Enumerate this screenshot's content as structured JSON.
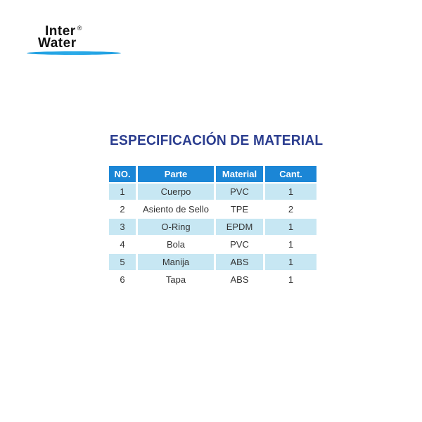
{
  "logo": {
    "line1": "Inter",
    "registered": "®",
    "line2": "Water"
  },
  "title": "ESPECIFICACIÓN DE MATERIAL",
  "colors": {
    "header": "#1b86d6",
    "row_alt": "#c7e7f3",
    "title": "#2b3d8f"
  },
  "table": {
    "headers": [
      "NO.",
      "Parte",
      "Material",
      "Cant."
    ],
    "rows": [
      [
        "1",
        "Cuerpo",
        "PVC",
        "1"
      ],
      [
        "2",
        "Asiento de Sello",
        "TPE",
        "2"
      ],
      [
        "3",
        "O-Ring",
        "EPDM",
        "1"
      ],
      [
        "4",
        "Bola",
        "PVC",
        "1"
      ],
      [
        "5",
        "Manija",
        "ABS",
        "1"
      ],
      [
        "6",
        "Tapa",
        "ABS",
        "1"
      ]
    ]
  }
}
